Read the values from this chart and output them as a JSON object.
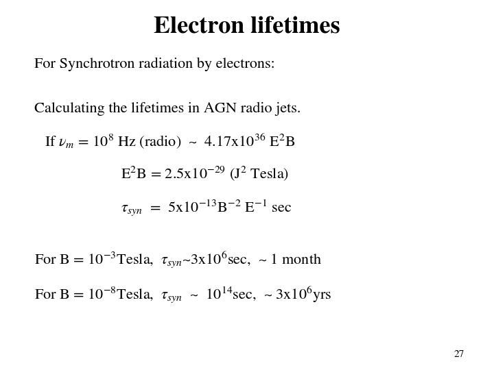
{
  "title": "Electron lifetimes",
  "title_fontsize": 26,
  "background_color": "#ffffff",
  "text_color": "#000000",
  "slide_number": "27",
  "main_fontsize": 16,
  "sub_fontsize": 11,
  "font_family": "STIXGeneral"
}
